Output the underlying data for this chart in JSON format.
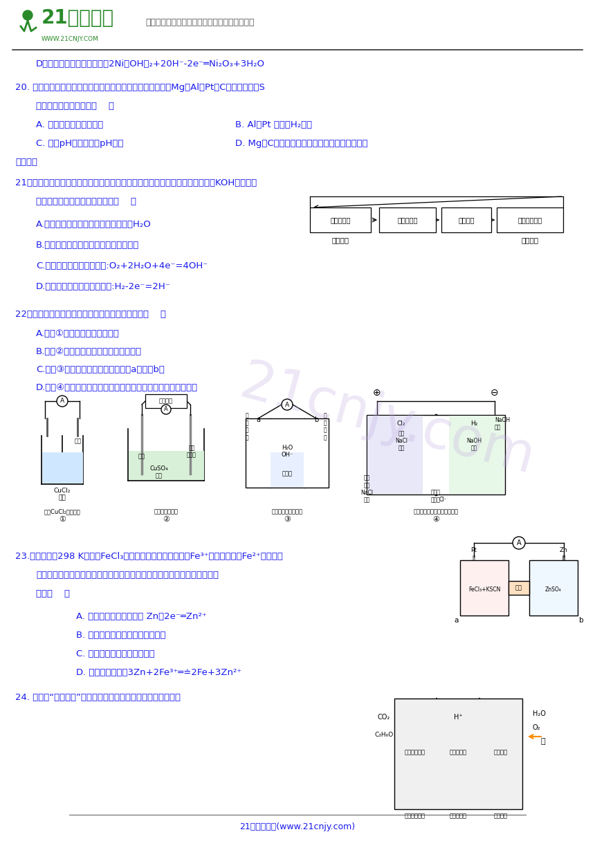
{
  "bg_color": "#ffffff",
  "text_color": "#1a1aee",
  "header_text": "中国最大型、最专业的中小学教育资源门户网站",
  "footer_text": "21世纪教育网(www.21cnjy.com)",
  "flowchart_boxes": [
    "光电转换器",
    "水电解系统",
    "氢氧储罐",
    "燃料电池系统"
  ],
  "flowchart_label1": "向日面时",
  "flowchart_label2": "背日面时"
}
